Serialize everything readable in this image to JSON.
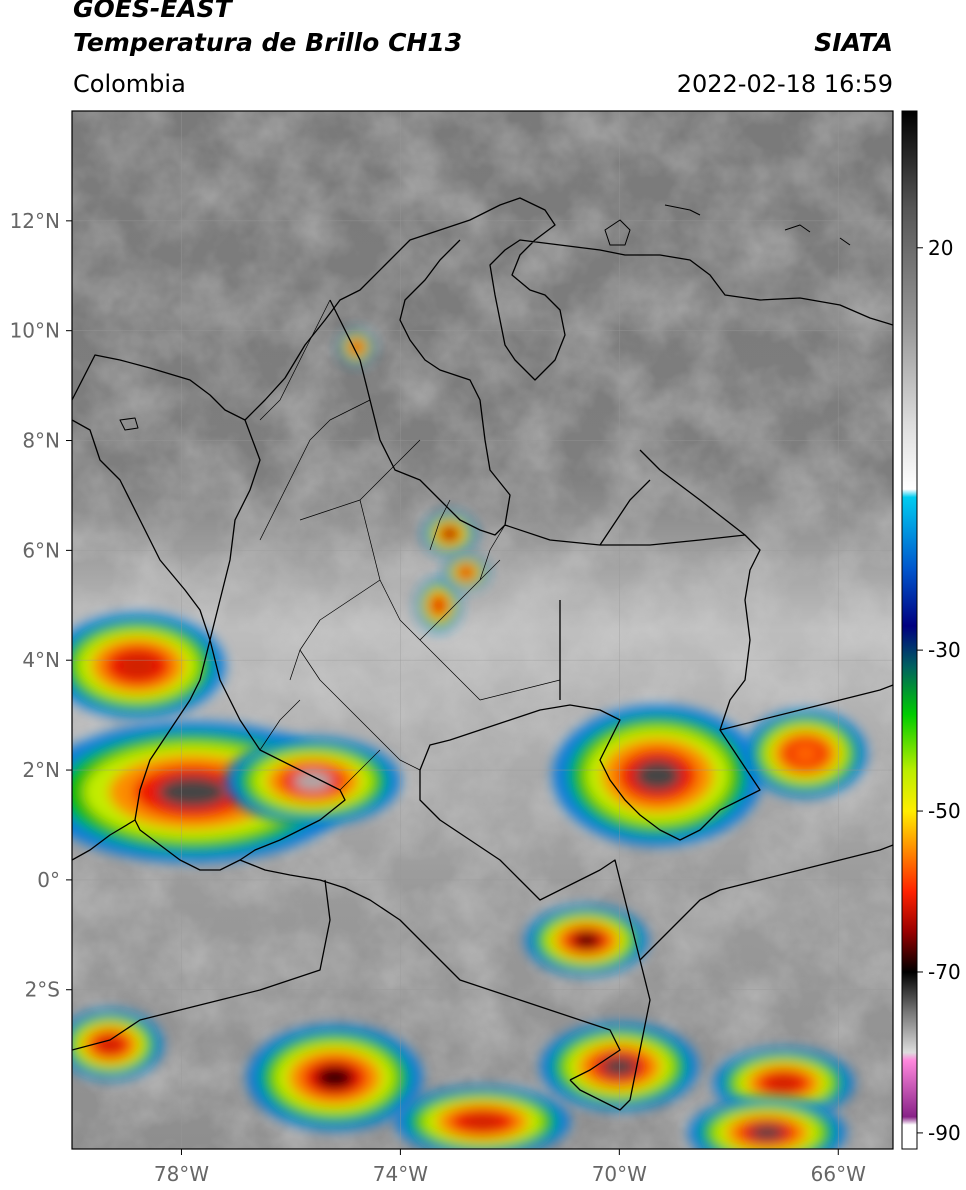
{
  "header": {
    "satellite": "GOES-EAST",
    "product": "Temperatura de Brillo CH13",
    "region": "Colombia",
    "agency": "SIATA",
    "datetime": "2022-02-18 16:59"
  },
  "map": {
    "lon_range": [
      -80,
      -65
    ],
    "lat_range": [
      -4.9,
      14
    ],
    "lat_ticks": [
      {
        "value": 12,
        "label": "12°N"
      },
      {
        "value": 10,
        "label": "10°N"
      },
      {
        "value": 8,
        "label": "8°N"
      },
      {
        "value": 6,
        "label": "6°N"
      },
      {
        "value": 4,
        "label": "4°N"
      },
      {
        "value": 2,
        "label": "2°N"
      },
      {
        "value": 0,
        "label": "0°"
      },
      {
        "value": -2,
        "label": "2°S"
      }
    ],
    "lon_ticks": [
      {
        "value": -78,
        "label": "78°W"
      },
      {
        "value": -74,
        "label": "74°W"
      },
      {
        "value": -70,
        "label": "70°W"
      },
      {
        "value": -66,
        "label": "66°W"
      }
    ],
    "grid": true,
    "storms": [
      {
        "lon": -77.8,
        "lat": 1.6,
        "rx": 1.8,
        "ry": 0.8,
        "core": "#444444"
      },
      {
        "lon": -75.6,
        "lat": 1.8,
        "rx": 1.0,
        "ry": 0.5,
        "core": "#aaaaaa"
      },
      {
        "lon": -78.8,
        "lat": 3.9,
        "rx": 1.0,
        "ry": 0.6,
        "core": "#d02000"
      },
      {
        "lon": -69.3,
        "lat": 1.9,
        "rx": 1.2,
        "ry": 0.8,
        "core": "#444444"
      },
      {
        "lon": -70.0,
        "lat": -3.4,
        "rx": 0.9,
        "ry": 0.5,
        "core": "#444444"
      },
      {
        "lon": -70.6,
        "lat": -1.1,
        "rx": 0.7,
        "ry": 0.4,
        "core": "#300000"
      },
      {
        "lon": -75.2,
        "lat": -3.6,
        "rx": 1.0,
        "ry": 0.6,
        "core": "#300000"
      },
      {
        "lon": -73.1,
        "lat": 6.3,
        "rx": 0.3,
        "ry": 0.25,
        "core": "#300000"
      },
      {
        "lon": -73.3,
        "lat": 5.0,
        "rx": 0.25,
        "ry": 0.3,
        "core": "#d02000"
      },
      {
        "lon": -72.8,
        "lat": 5.6,
        "rx": 0.25,
        "ry": 0.2,
        "core": "#d02000"
      },
      {
        "lon": -66.6,
        "lat": 2.3,
        "rx": 0.7,
        "ry": 0.5,
        "core": "#ff6600"
      },
      {
        "lon": -74.8,
        "lat": 9.7,
        "rx": 0.2,
        "ry": 0.2,
        "core": "#d02000"
      },
      {
        "lon": -79.3,
        "lat": -3.0,
        "rx": 0.6,
        "ry": 0.4,
        "core": "#d02000"
      },
      {
        "lon": -67.0,
        "lat": -3.7,
        "rx": 0.8,
        "ry": 0.4,
        "core": "#d02000"
      },
      {
        "lon": -67.3,
        "lat": -4.6,
        "rx": 0.9,
        "ry": 0.4,
        "core": "#444444"
      },
      {
        "lon": -72.5,
        "lat": -4.4,
        "rx": 1.0,
        "ry": 0.4,
        "core": "#d02000"
      }
    ]
  },
  "colorbar": {
    "min": -92,
    "max": 37,
    "ticks": [
      {
        "value": 20,
        "label": "20"
      },
      {
        "value": -30,
        "label": "-30"
      },
      {
        "value": -50,
        "label": "-50"
      },
      {
        "value": -70,
        "label": "-70"
      },
      {
        "value": -90,
        "label": "-90"
      }
    ],
    "stops": [
      {
        "value": 37,
        "color": "#000000"
      },
      {
        "value": 25,
        "color": "#555555"
      },
      {
        "value": 10,
        "color": "#999999"
      },
      {
        "value": -2,
        "color": "#dddddd"
      },
      {
        "value": -10,
        "color": "#ffffff"
      },
      {
        "value": -11,
        "color": "#00ccf0"
      },
      {
        "value": -20,
        "color": "#0055cc"
      },
      {
        "value": -27,
        "color": "#000080"
      },
      {
        "value": -32,
        "color": "#006060"
      },
      {
        "value": -38,
        "color": "#00cc00"
      },
      {
        "value": -45,
        "color": "#bbee00"
      },
      {
        "value": -50,
        "color": "#ffee00"
      },
      {
        "value": -55,
        "color": "#ff8800"
      },
      {
        "value": -60,
        "color": "#ff2200"
      },
      {
        "value": -65,
        "color": "#990000"
      },
      {
        "value": -70,
        "color": "#000000"
      },
      {
        "value": -75,
        "color": "#777777"
      },
      {
        "value": -80,
        "color": "#dddddd"
      },
      {
        "value": -81,
        "color": "#ff88dd"
      },
      {
        "value": -88,
        "color": "#882288"
      },
      {
        "value": -89,
        "color": "#ffffff"
      }
    ]
  }
}
